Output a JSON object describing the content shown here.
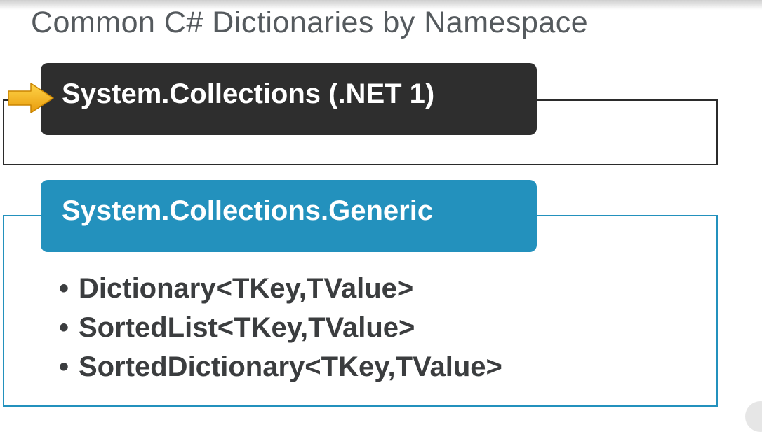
{
  "slide": {
    "title": "Common C# Dictionaries by Namespace"
  },
  "namespaces": [
    {
      "name": "System.Collections (.NET 1)",
      "color": "#2e2e2e",
      "highlighted": true,
      "items": []
    },
    {
      "name": "System.Collections.Generic",
      "color": "#2391bd",
      "highlighted": false,
      "items": [
        "Dictionary<TKey,TValue>",
        "SortedList<TKey,TValue>",
        "SortedDictionary<TKey,TValue>"
      ]
    }
  ],
  "pointer": {
    "icon": "arrow-right-icon",
    "color": "#f5b21a"
  }
}
